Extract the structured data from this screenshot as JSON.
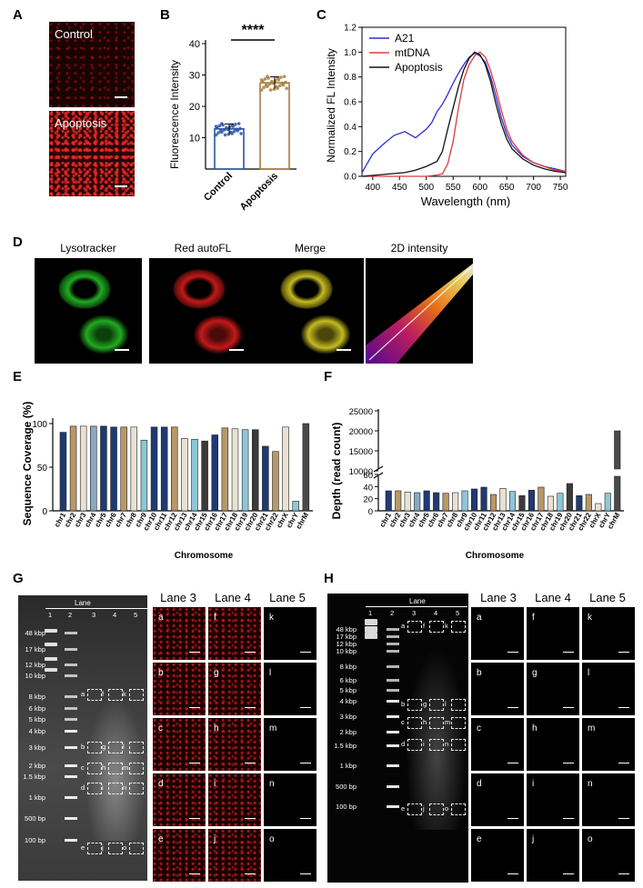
{
  "panels": {
    "A": {
      "label": "A",
      "images": [
        "Control",
        "Apoptosis"
      ]
    },
    "B": {
      "label": "B",
      "significance": "****"
    },
    "C": {
      "label": "C"
    },
    "D": {
      "label": "D",
      "titles": [
        "Lysotracker",
        "Red autoFL",
        "Merge",
        "2D intensity"
      ]
    },
    "E": {
      "label": "E"
    },
    "F": {
      "label": "F"
    },
    "G": {
      "label": "G"
    },
    "H": {
      "label": "H"
    }
  },
  "gel": {
    "lane_title": "Lane",
    "lane_numbers": [
      "1",
      "2",
      "3",
      "4",
      "5"
    ],
    "markers_G": [
      "48 kbp",
      "17 kbp",
      "12 kbp",
      "10 kbp",
      "8 kbp",
      "6 kbp",
      "5 kbp",
      "4 kbp",
      "3 kbp",
      "2 kbp",
      "1.5 kbp",
      "1 kbp",
      "500 bp",
      "100 bp"
    ],
    "markers_H": [
      "48 kbp",
      "17 kbp",
      "12 kbp",
      "10 kbp",
      "8 kbp",
      "6 kbp",
      "5 kbp",
      "4 kbp",
      "3 kbp",
      "2 kbp",
      "1.5 kbp",
      "1 kbp",
      "500 bp",
      "100 bp"
    ],
    "box_letters": [
      [
        "a",
        "f",
        "k"
      ],
      [
        "b",
        "g",
        "l"
      ],
      [
        "c",
        "h",
        "m"
      ],
      [
        "d",
        "i",
        "n"
      ],
      [
        "e",
        "j",
        "o"
      ]
    ],
    "grid_titles": [
      "Lane 3",
      "Lane 4",
      "Lane 5"
    ]
  },
  "chart_data": [
    {
      "type": "bar",
      "panel": "B",
      "categories": [
        "Control",
        "Apoptosis"
      ],
      "values": [
        12.8,
        27.5
      ],
      "errors": [
        1.6,
        1.9
      ],
      "ylabel": "Fluorescence Intensity",
      "ylim": [
        0,
        40
      ],
      "yticks": [
        10,
        20,
        30,
        40
      ],
      "colors": [
        "#2a55a6",
        "#a67c3d"
      ]
    },
    {
      "type": "line",
      "panel": "C",
      "xlabel": "Wavelength (nm)",
      "ylabel": "Normalized FL Intensity",
      "xlim": [
        380,
        760
      ],
      "ylim": [
        0,
        1.2
      ],
      "xticks": [
        400,
        450,
        500,
        550,
        600,
        650,
        700,
        750
      ],
      "yticks": [
        0.0,
        0.2,
        0.4,
        0.6,
        0.8,
        1.0,
        1.2
      ],
      "legend": "top-left",
      "series": [
        {
          "name": "A21",
          "color": "#2b2bd6",
          "x": [
            380,
            400,
            420,
            440,
            460,
            480,
            500,
            510,
            520,
            530,
            540,
            550,
            560,
            570,
            580,
            590,
            600,
            610,
            620,
            630,
            640,
            650,
            660,
            680,
            700,
            720,
            740,
            760
          ],
          "y": [
            0.03,
            0.18,
            0.26,
            0.33,
            0.36,
            0.31,
            0.38,
            0.43,
            0.52,
            0.58,
            0.66,
            0.75,
            0.83,
            0.9,
            0.96,
            0.99,
            0.97,
            0.92,
            0.8,
            0.64,
            0.47,
            0.34,
            0.25,
            0.16,
            0.11,
            0.08,
            0.06,
            0.04
          ]
        },
        {
          "name": "mtDNA",
          "color": "#e03b3b",
          "x": [
            380,
            500,
            520,
            530,
            540,
            550,
            560,
            570,
            580,
            590,
            600,
            610,
            620,
            630,
            640,
            650,
            660,
            680,
            700,
            720,
            740,
            760
          ],
          "y": [
            0,
            0,
            0.01,
            0.02,
            0.1,
            0.28,
            0.55,
            0.78,
            0.9,
            0.97,
            1.0,
            0.96,
            0.85,
            0.7,
            0.53,
            0.38,
            0.28,
            0.17,
            0.11,
            0.08,
            0.05,
            0.04
          ]
        },
        {
          "name": "Apoptosis",
          "color": "#111111",
          "x": [
            380,
            460,
            480,
            500,
            520,
            530,
            540,
            550,
            560,
            570,
            580,
            590,
            600,
            610,
            620,
            630,
            640,
            650,
            660,
            680,
            700,
            720,
            740,
            760
          ],
          "y": [
            0,
            0.03,
            0.05,
            0.08,
            0.12,
            0.2,
            0.38,
            0.55,
            0.72,
            0.86,
            0.95,
            1.0,
            0.98,
            0.9,
            0.76,
            0.58,
            0.42,
            0.3,
            0.22,
            0.14,
            0.09,
            0.06,
            0.04,
            0.03
          ]
        }
      ]
    },
    {
      "type": "bar",
      "panel": "E",
      "xlabel": "Chromosome",
      "ylabel": "Sequence Coverage (%)",
      "ylim": [
        0,
        100
      ],
      "yticks": [
        0,
        50,
        100
      ],
      "categories": [
        "chr1",
        "chr2",
        "chr3",
        "chr4",
        "chr5",
        "chr6",
        "chr7",
        "chr8",
        "chr9",
        "chr10",
        "chr11",
        "chr12",
        "chr13",
        "chr14",
        "chr15",
        "chr16",
        "chr17",
        "chr18",
        "chr19",
        "chr20",
        "chr21",
        "chr22",
        "chrX",
        "chrY",
        "chrM"
      ],
      "values": [
        90,
        97,
        97,
        97,
        97,
        96,
        96,
        96,
        81,
        96,
        96,
        96,
        83,
        82,
        80,
        87,
        95,
        94,
        93,
        93,
        74,
        68,
        96,
        11,
        100
      ],
      "colors": [
        "#1f3a73",
        "#b89868",
        "#e9e2d2",
        "#8aa8c0",
        "#1f3a73",
        "#1f3a73",
        "#b89868",
        "#e9e2d2",
        "#8ec6d8",
        "#1f3a73",
        "#1f3a73",
        "#b89868",
        "#e9e2d2",
        "#8ec6d8",
        "#3a3a3a",
        "#1f3a73",
        "#b89868",
        "#e9e2d2",
        "#8ec6d8",
        "#3a3a3a",
        "#1f3a73",
        "#b89868",
        "#e9e2d2",
        "#8ec6d8",
        "#4a4a4a"
      ]
    },
    {
      "type": "bar",
      "panel": "F",
      "xlabel": "Chromosome",
      "ylabel": "Depth (read count)",
      "yticks_lower": [
        0,
        20,
        40,
        60
      ],
      "yticks_upper": [
        10000,
        15000,
        20000,
        25000
      ],
      "categories": [
        "chr1",
        "chr2",
        "chr3",
        "chr4",
        "chr5",
        "chr6",
        "chr7",
        "chr8",
        "chr9",
        "chr10",
        "chr11",
        "chr12",
        "chr13",
        "chr14",
        "chr15",
        "chr16",
        "chr17",
        "chr18",
        "chr19",
        "chr20",
        "chr21",
        "chr22",
        "chrX",
        "chrY",
        "chrM"
      ],
      "values": [
        33,
        33,
        31,
        30,
        33,
        30,
        29,
        30,
        33,
        36,
        39,
        27,
        37,
        32,
        25,
        34,
        39,
        24,
        29,
        45,
        25,
        27,
        12,
        29,
        20000
      ],
      "colors": [
        "#1f3a73",
        "#b89868",
        "#e9e2d2",
        "#8aa8c0",
        "#1f3a73",
        "#1f3a73",
        "#b89868",
        "#e9e2d2",
        "#8ec6d8",
        "#1f3a73",
        "#1f3a73",
        "#b89868",
        "#e9e2d2",
        "#8ec6d8",
        "#3a3a3a",
        "#1f3a73",
        "#b89868",
        "#e9e2d2",
        "#8ec6d8",
        "#3a3a3a",
        "#1f3a73",
        "#b89868",
        "#e9e2d2",
        "#8ec6d8",
        "#4a4a4a"
      ]
    }
  ]
}
